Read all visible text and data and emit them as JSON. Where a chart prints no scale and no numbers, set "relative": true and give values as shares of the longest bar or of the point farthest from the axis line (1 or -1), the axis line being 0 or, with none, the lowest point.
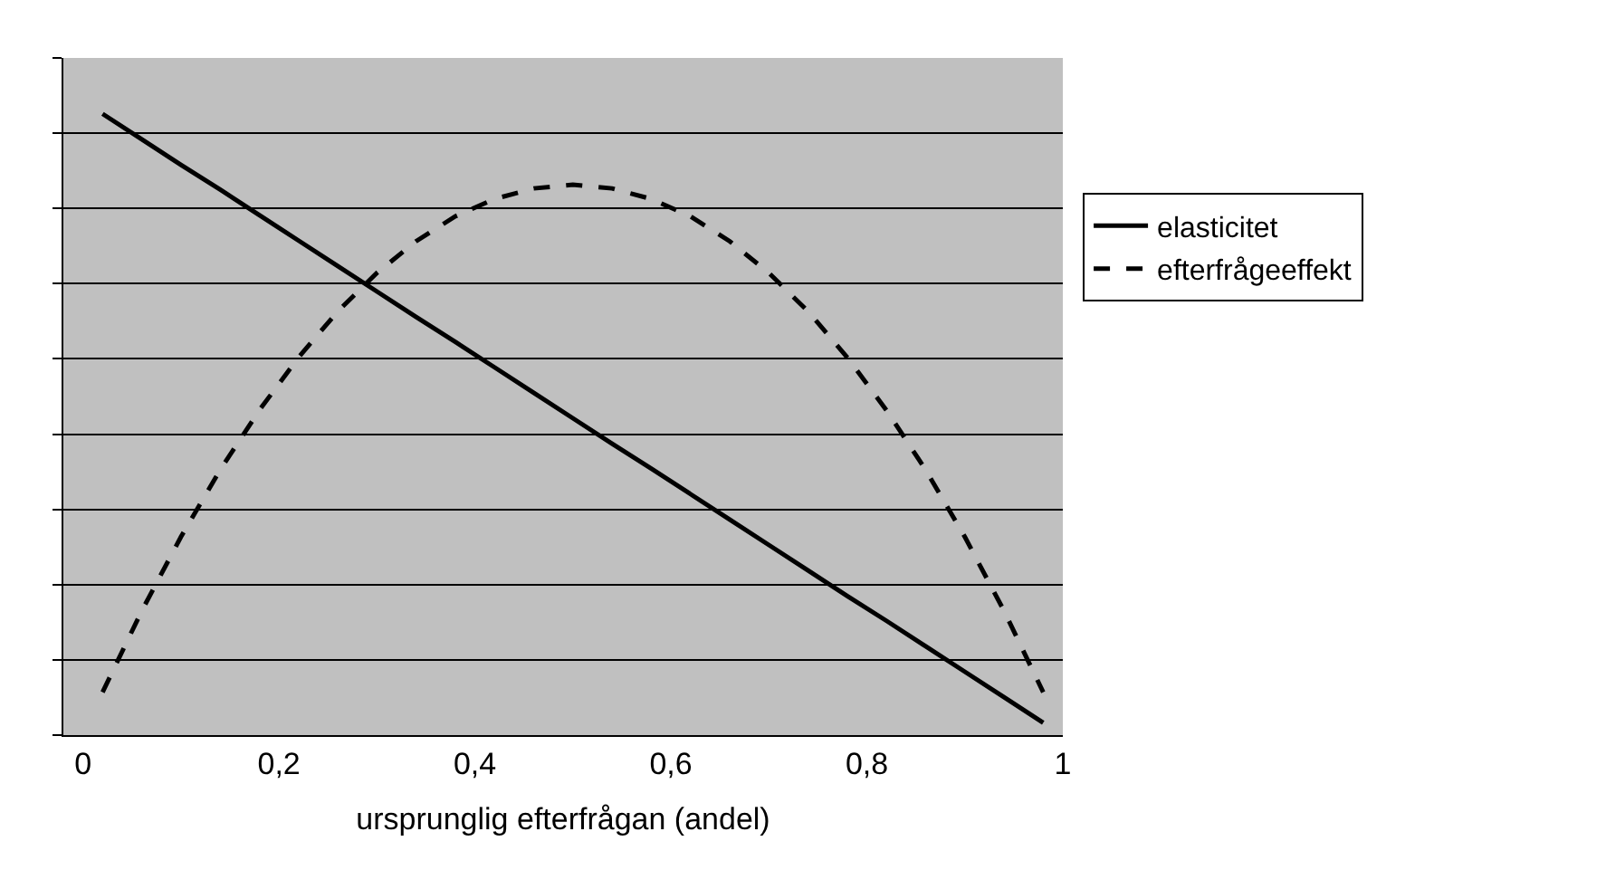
{
  "chart_data": {
    "type": "line",
    "xlabel": "ursprunglig efterfrågan (andel)",
    "relative": true,
    "xlim": [
      -0.02,
      1
    ],
    "xticks": [
      0,
      {
        "value": 0.2,
        "label": "0,2"
      },
      {
        "value": 0.4,
        "label": "0,4"
      },
      {
        "value": 0.6,
        "label": "0,6"
      },
      {
        "value": 0.8,
        "label": "0,8"
      },
      1
    ],
    "x": [
      0.02,
      0.06,
      0.1,
      0.14,
      0.18,
      0.22,
      0.26,
      0.3,
      0.34,
      0.38,
      0.42,
      0.46,
      0.5,
      0.54,
      0.58,
      0.62,
      0.66,
      0.7,
      0.74,
      0.78,
      0.82,
      0.86,
      0.9,
      0.94,
      0.98
    ],
    "series": [
      {
        "name": "elasticitet",
        "color": "#000000",
        "line_style": "solid",
        "values": [
          1.0,
          0.959,
          0.918,
          0.878,
          0.837,
          0.796,
          0.755,
          0.714,
          0.673,
          0.633,
          0.592,
          0.551,
          0.51,
          0.469,
          0.429,
          0.388,
          0.347,
          0.306,
          0.265,
          0.224,
          0.184,
          0.143,
          0.102,
          0.061,
          0.02
        ]
      },
      {
        "name": "efterfrågeeffekt",
        "color": "#000000",
        "line_style": "dashed",
        "values": [
          0.069,
          0.2,
          0.319,
          0.427,
          0.523,
          0.608,
          0.682,
          0.744,
          0.795,
          0.835,
          0.863,
          0.88,
          0.886,
          0.88,
          0.863,
          0.835,
          0.795,
          0.744,
          0.682,
          0.608,
          0.523,
          0.427,
          0.319,
          0.2,
          0.069
        ]
      }
    ],
    "grid": "y",
    "legend": "right",
    "tick_labels": "x",
    "marker": "none"
  }
}
